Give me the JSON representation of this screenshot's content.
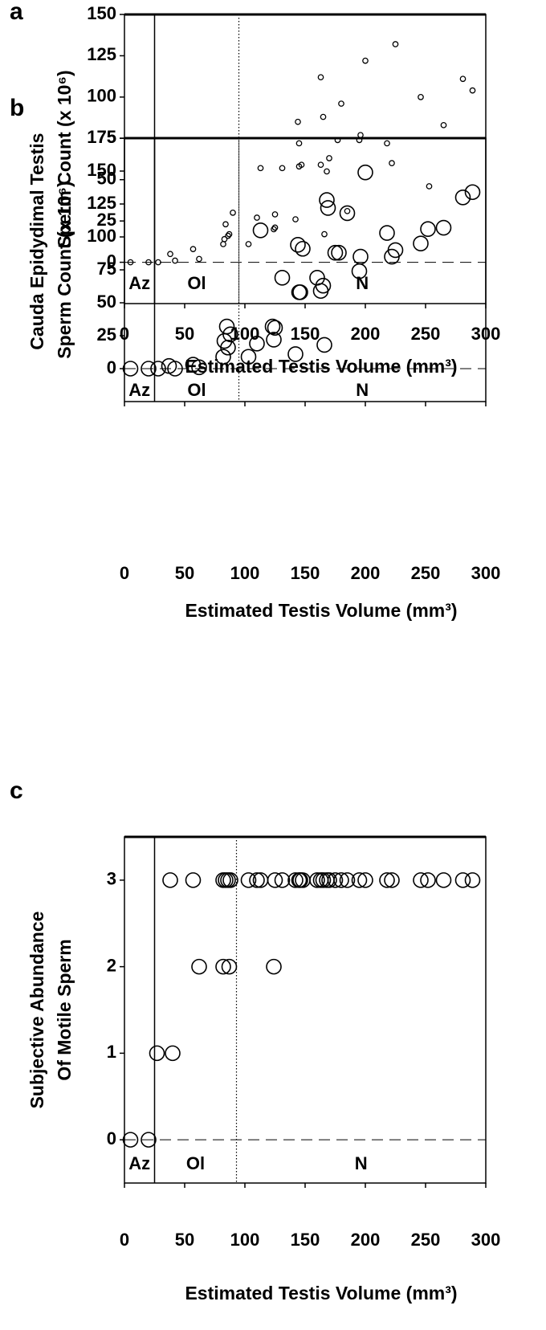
{
  "chart_data": [
    {
      "type": "scatter",
      "panel": "a",
      "ylabel": [
        "Testis",
        "Sperm Count (x 10⁶)"
      ],
      "xlabel": "Estimated Testis Volume (mm³)",
      "color": "#000000",
      "x": [
        5,
        20,
        28,
        38,
        42,
        57,
        62,
        82,
        83,
        84,
        86,
        87,
        90,
        103,
        110,
        113,
        124,
        125,
        125,
        131,
        142,
        144,
        145,
        145,
        147,
        163,
        163,
        165,
        166,
        168,
        170,
        177,
        180,
        185,
        195,
        196,
        200,
        218,
        222,
        225,
        246,
        253,
        265,
        281,
        289
      ],
      "values": [
        0,
        0,
        0,
        5,
        1,
        8,
        2,
        11,
        14,
        23,
        16,
        17,
        30,
        11,
        27,
        57,
        20,
        21,
        29,
        57,
        26,
        85,
        72,
        58,
        59,
        112,
        59,
        88,
        17,
        55,
        63,
        74,
        96,
        31,
        74,
        77,
        122,
        72,
        60,
        132,
        100,
        46,
        83,
        111,
        104
      ],
      "xlim": [
        0,
        300
      ],
      "ylim": [
        -25,
        150
      ],
      "xticks": [
        0,
        50,
        100,
        150,
        200,
        250,
        300
      ],
      "yticks": [
        0,
        25,
        50,
        75,
        100,
        125,
        150
      ],
      "vlines": [
        {
          "value": 25,
          "style": "solid"
        },
        {
          "value": 95,
          "style": "dotted"
        }
      ],
      "zero_line": {
        "value": 0,
        "style": "dashed"
      },
      "regions": [
        "Az",
        "Ol",
        "N"
      ]
    },
    {
      "type": "scatter",
      "panel": "b",
      "ylabel": [
        "Cauda Epidydimal",
        "Sperm Count (x 10⁶)"
      ],
      "xlabel": "Estimated Testis Volume  (mm³)",
      "color": "#000000",
      "x": [
        5,
        20,
        28,
        37,
        42,
        57,
        62,
        82,
        83,
        85,
        86,
        88,
        103,
        110,
        113,
        123,
        124,
        125,
        131,
        142,
        144,
        145,
        146,
        148,
        160,
        163,
        165,
        166,
        168,
        169,
        175,
        178,
        185,
        195,
        196,
        200,
        218,
        222,
        225,
        246,
        252,
        265,
        281,
        289
      ],
      "values": [
        0,
        0,
        0,
        2,
        0,
        3,
        1,
        9,
        21,
        32,
        16,
        26,
        9,
        19,
        105,
        32,
        22,
        31,
        69,
        11,
        94,
        58,
        58,
        91,
        69,
        59,
        63,
        18,
        128,
        122,
        88,
        88,
        118,
        74,
        85,
        149,
        103,
        85,
        90,
        95,
        106,
        107,
        130,
        134
      ],
      "xlim": [
        0,
        300
      ],
      "ylim": [
        -25,
        175
      ],
      "xticks": [
        0,
        50,
        100,
        150,
        200,
        250,
        300
      ],
      "yticks": [
        0,
        25,
        50,
        75,
        100,
        125,
        150,
        175
      ],
      "vlines": [
        {
          "value": 25,
          "style": "solid"
        },
        {
          "value": 95,
          "style": "dotted"
        }
      ],
      "zero_line": {
        "value": 0,
        "style": "dashed"
      },
      "regions": [
        "Az",
        "Ol",
        "N"
      ]
    },
    {
      "type": "scatter",
      "panel": "c",
      "ylabel": [
        "Subjective Abundance",
        "Of Motile Sperm"
      ],
      "xlabel": "Estimated Testis Volume (mm³)",
      "color": "#000000",
      "x": [
        5,
        20,
        27,
        40,
        62,
        82,
        87,
        124,
        38,
        57,
        82,
        84,
        86,
        88,
        103,
        110,
        113,
        125,
        131,
        142,
        145,
        146,
        148,
        160,
        163,
        165,
        168,
        170,
        175,
        180,
        185,
        195,
        200,
        218,
        222,
        246,
        252,
        265,
        281,
        289
      ],
      "values": [
        0,
        0,
        1,
        1,
        2,
        2,
        2,
        2,
        3,
        3,
        3,
        3,
        3,
        3,
        3,
        3,
        3,
        3,
        3,
        3,
        3,
        3,
        3,
        3,
        3,
        3,
        3,
        3,
        3,
        3,
        3,
        3,
        3,
        3,
        3,
        3,
        3,
        3,
        3,
        3
      ],
      "xlim": [
        0,
        300
      ],
      "ylim": [
        -0.5,
        3.5
      ],
      "xticks": [
        0,
        50,
        100,
        150,
        200,
        250,
        300
      ],
      "yticks": [
        0,
        1,
        2,
        3
      ],
      "vlines": [
        {
          "value": 25,
          "style": "solid"
        },
        {
          "value": 93,
          "style": "dotted"
        }
      ],
      "zero_line": {
        "value": 0,
        "style": "dashed"
      },
      "regions": [
        "Az",
        "Ol",
        "N"
      ]
    }
  ]
}
